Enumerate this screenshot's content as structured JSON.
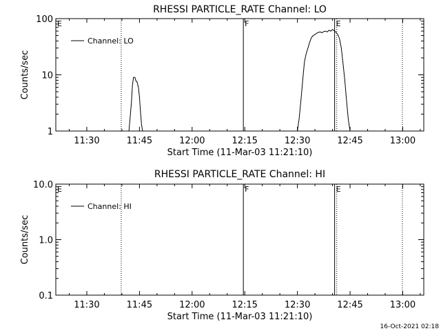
{
  "footer": {
    "timestamp": "16-Oct-2021 02:18"
  },
  "chart_data": [
    {
      "type": "line",
      "title": "RHESSI PARTICLE_RATE Channel: LO",
      "xlabel": "Start Time (11-Mar-03 11:21:10)",
      "ylabel": "Counts/sec",
      "yscale": "log",
      "ylim": [
        1,
        100
      ],
      "xlim_minutes": [
        681.17,
        786.0
      ],
      "x_ticks": [
        "11:30",
        "11:45",
        "12:00",
        "12:15",
        "12:30",
        "12:45",
        "13:00"
      ],
      "x_tick_minutes": [
        690,
        705,
        720,
        735,
        750,
        765,
        780
      ],
      "y_ticks": [
        "1",
        "10",
        "100"
      ],
      "y_tick_values": [
        1,
        10,
        100
      ],
      "minor_y": true,
      "legend": {
        "label": "Channel: LO",
        "position": "top-left"
      },
      "markers": [
        {
          "label": "E",
          "minute": 681.17,
          "style": "solid"
        },
        {
          "label": "",
          "minute": 699.8,
          "style": "dotted"
        },
        {
          "label": "F",
          "minute": 734.6,
          "style": "solid"
        },
        {
          "label": "E",
          "minute": 760.6,
          "style": "solid"
        },
        {
          "label": "",
          "minute": 761.2,
          "style": "dotted"
        },
        {
          "label": "",
          "minute": 779.9,
          "style": "dotted"
        }
      ],
      "series": [
        {
          "name": "Channel: LO",
          "segments": [
            {
              "x_minutes": [
                702.0,
                702.3,
                702.7,
                703.0,
                703.3,
                703.7,
                704.0,
                704.3,
                704.7,
                705.0,
                705.3,
                705.6,
                705.9
              ],
              "values": [
                1,
                1.6,
                3.2,
                6.5,
                9,
                9,
                7.8,
                7.5,
                6,
                4,
                2.2,
                1.3,
                1
              ]
            },
            {
              "x_minutes": [
                750.0,
                750.5,
                751.0,
                751.5,
                752.0,
                752.5,
                753.0,
                753.5,
                754.0,
                754.5,
                755.0,
                755.5,
                756.0,
                756.5,
                757.0,
                757.5,
                758.0,
                758.5,
                759.0,
                759.5,
                760.0,
                760.5,
                761.0,
                761.5,
                762.0,
                762.5,
                763.0,
                763.5,
                764.0,
                764.5,
                765.0
              ],
              "values": [
                1,
                1.7,
                3.5,
                8,
                17,
                24,
                30,
                38,
                46,
                50,
                52,
                55,
                57,
                58,
                56,
                59,
                60,
                58,
                62,
                60,
                64,
                61,
                57,
                52,
                44,
                30,
                16,
                8,
                3.5,
                1.6,
                1
              ]
            }
          ]
        }
      ]
    },
    {
      "type": "line",
      "title": "RHESSI PARTICLE_RATE Channel: HI",
      "xlabel": "Start Time (11-Mar-03 11:21:10)",
      "ylabel": "Counts/sec",
      "yscale": "log",
      "ylim": [
        0.1,
        10
      ],
      "xlim_minutes": [
        681.17,
        786.0
      ],
      "x_ticks": [
        "11:30",
        "11:45",
        "12:00",
        "12:15",
        "12:30",
        "12:45",
        "13:00"
      ],
      "x_tick_minutes": [
        690,
        705,
        720,
        735,
        750,
        765,
        780
      ],
      "y_ticks": [
        "0.1",
        "1.0",
        "10.0"
      ],
      "y_tick_values": [
        0.1,
        1,
        10
      ],
      "minor_y": true,
      "legend": {
        "label": "Channel: HI",
        "position": "top-left"
      },
      "markers": [
        {
          "label": "E",
          "minute": 681.17,
          "style": "solid"
        },
        {
          "label": "",
          "minute": 699.8,
          "style": "dotted"
        },
        {
          "label": "F",
          "minute": 734.6,
          "style": "solid"
        },
        {
          "label": "E",
          "minute": 760.6,
          "style": "solid"
        },
        {
          "label": "",
          "minute": 761.2,
          "style": "dotted"
        },
        {
          "label": "",
          "minute": 779.9,
          "style": "dotted"
        }
      ],
      "series": [
        {
          "name": "Channel: HI",
          "segments": []
        }
      ]
    }
  ]
}
